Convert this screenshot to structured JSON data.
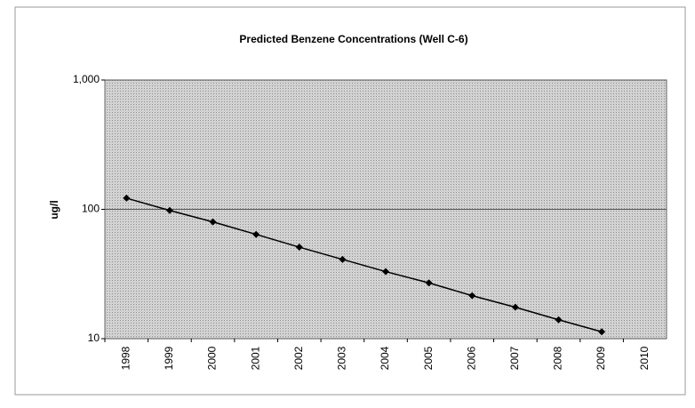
{
  "chart_data": {
    "type": "line",
    "title": "Predicted Benzene Concentrations (Well C-6)",
    "ylabel": "ug/l",
    "categories": [
      "1998",
      "1999",
      "2000",
      "2001",
      "2002",
      "2003",
      "2004",
      "2005",
      "2006",
      "2007",
      "2008",
      "2009",
      "2010"
    ],
    "series": [
      {
        "name": "Benzene",
        "color": "#000000",
        "values": [
          122,
          98,
          80,
          64,
          51,
          41,
          33,
          27,
          21.5,
          17.5,
          14,
          11.3,
          null
        ]
      }
    ],
    "ylim": [
      10,
      1000
    ],
    "yticks": [
      10,
      100,
      {
        "value": 1000,
        "label": "1,000"
      }
    ],
    "log_scale": true,
    "grid": true,
    "legend": false
  }
}
